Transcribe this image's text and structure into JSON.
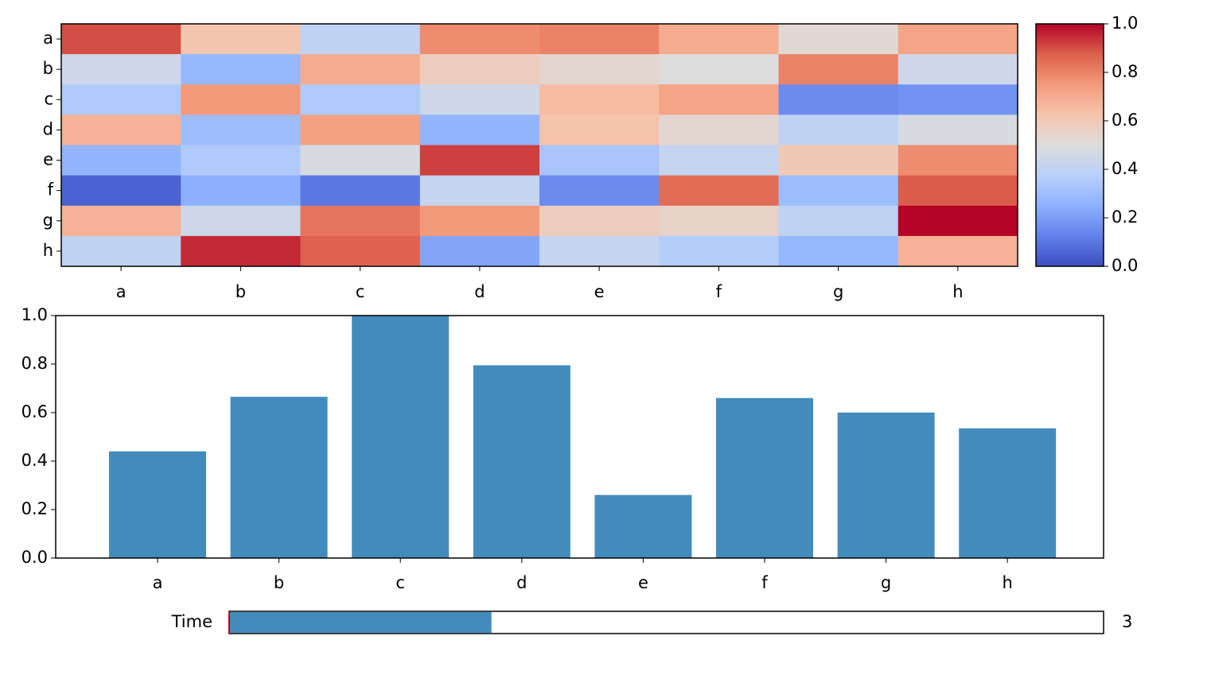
{
  "chart_data": [
    {
      "type": "heatmap",
      "x": [
        "a",
        "b",
        "c",
        "d",
        "e",
        "f",
        "g",
        "h"
      ],
      "y": [
        "a",
        "b",
        "c",
        "d",
        "e",
        "f",
        "g",
        "h"
      ],
      "values": [
        [
          0.9,
          0.62,
          0.4,
          0.78,
          0.8,
          0.7,
          0.52,
          0.72
        ],
        [
          0.45,
          0.28,
          0.7,
          0.58,
          0.53,
          0.5,
          0.8,
          0.45
        ],
        [
          0.35,
          0.75,
          0.35,
          0.45,
          0.65,
          0.72,
          0.15,
          0.17
        ],
        [
          0.68,
          0.3,
          0.73,
          0.27,
          0.63,
          0.53,
          0.4,
          0.48
        ],
        [
          0.27,
          0.35,
          0.48,
          0.92,
          0.33,
          0.42,
          0.6,
          0.78
        ],
        [
          0.05,
          0.25,
          0.1,
          0.42,
          0.15,
          0.85,
          0.3,
          0.88
        ],
        [
          0.68,
          0.45,
          0.83,
          0.75,
          0.58,
          0.55,
          0.4,
          1.0
        ],
        [
          0.4,
          0.95,
          0.87,
          0.22,
          0.42,
          0.36,
          0.28,
          0.68
        ]
      ],
      "colormap": "coolwarm",
      "zlim": [
        0,
        1
      ],
      "zticks": [
        {
          "value": 0,
          "label": "0.0"
        },
        {
          "value": 0.2,
          "label": "0.2"
        },
        {
          "value": 0.4,
          "label": "0.4"
        },
        {
          "value": 0.6,
          "label": "0.6"
        },
        {
          "value": 0.8,
          "label": "0.8"
        },
        {
          "value": 1,
          "label": "1.0"
        }
      ]
    },
    {
      "type": "bar",
      "categories": [
        "a",
        "b",
        "c",
        "d",
        "e",
        "f",
        "g",
        "h"
      ],
      "values": [
        0.44,
        0.665,
        1.0,
        0.795,
        0.26,
        0.66,
        0.6,
        0.535
      ],
      "color": "#438bbd",
      "ylim": [
        0,
        1
      ],
      "yticks": [
        {
          "value": 0,
          "label": "0.0"
        },
        {
          "value": 0.2,
          "label": "0.2"
        },
        {
          "value": 0.4,
          "label": "0.4"
        },
        {
          "value": 0.6,
          "label": "0.6"
        },
        {
          "value": 0.8,
          "label": "0.8"
        },
        {
          "value": 1,
          "label": "1.0"
        }
      ]
    }
  ],
  "slider": {
    "label": "Time",
    "value": 3,
    "range": [
      0,
      10
    ],
    "color": "#438bbd"
  }
}
